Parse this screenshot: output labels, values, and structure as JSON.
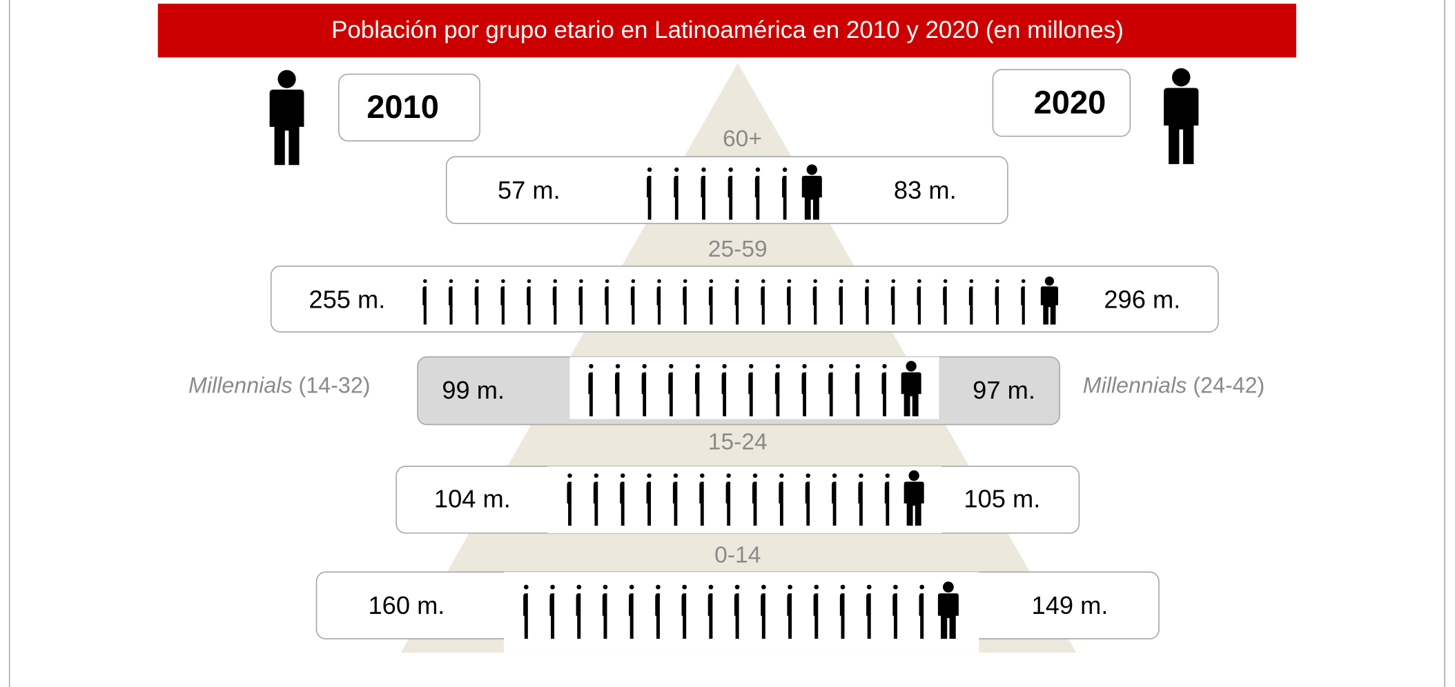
{
  "title": "Población por grupo etario en Latinoamérica en 2010 y 2020 (en millones)",
  "year_left": "2010",
  "year_right": "2020",
  "groups": [
    {
      "label": "60+",
      "left": "57 m.",
      "right": "83 m."
    },
    {
      "label": "25-59",
      "left": "255 m.",
      "right": "296 m."
    },
    {
      "label": "15-24",
      "left": "104 m.",
      "right": "105 m."
    },
    {
      "label": "0-14",
      "left": "160 m.",
      "right": "149 m."
    }
  ],
  "millennials": {
    "left": {
      "name": "Millennials",
      "range": "(14-32)",
      "value": "99 m."
    },
    "right": {
      "name": "Millennials",
      "range": "(24-42)",
      "value": "97 m."
    }
  }
}
